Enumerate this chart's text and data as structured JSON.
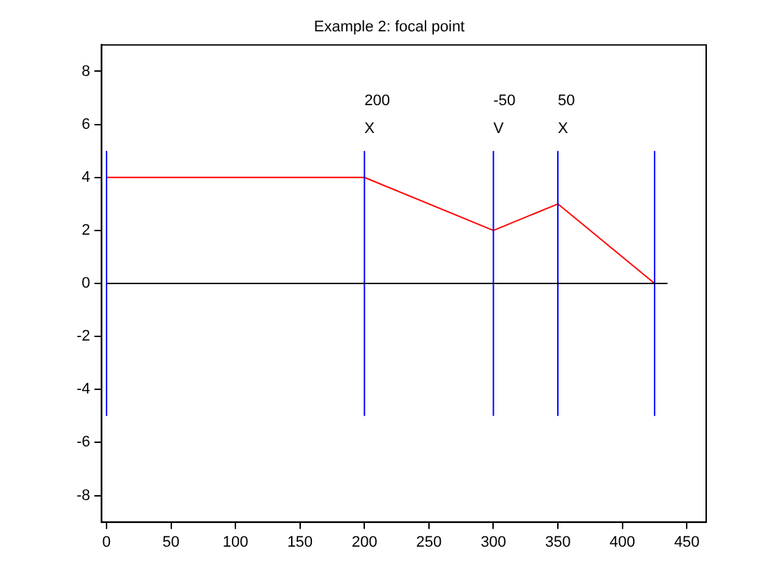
{
  "chart_data": {
    "type": "line",
    "title": "Example 2: focal point",
    "xlim": [
      -4,
      465
    ],
    "xticks": [
      0,
      50,
      100,
      150,
      200,
      250,
      300,
      350,
      400,
      450
    ],
    "ylim": [
      -9,
      9
    ],
    "yticks": [
      -8,
      -6,
      -4,
      -2,
      0,
      2,
      4,
      6,
      8
    ],
    "grid": false,
    "legend": false,
    "marker": "none",
    "line_style": "solid",
    "series": [
      {
        "color": "#000000",
        "x": [
          0,
          435
        ],
        "values": [
          0,
          0
        ]
      },
      {
        "color": "#0000ff",
        "x": [
          0,
          0
        ],
        "values": [
          -5,
          5
        ]
      },
      {
        "color": "#0000ff",
        "x": [
          200,
          200
        ],
        "values": [
          -5,
          5
        ]
      },
      {
        "color": "#0000ff",
        "x": [
          300,
          300
        ],
        "values": [
          -5,
          5
        ]
      },
      {
        "color": "#0000ff",
        "x": [
          350,
          350
        ],
        "values": [
          -5,
          5
        ]
      },
      {
        "color": "#0000ff",
        "x": [
          425,
          425
        ],
        "values": [
          -5,
          5
        ]
      },
      {
        "color": "#ff0000",
        "x": [
          0,
          200,
          300,
          350,
          425
        ],
        "values": [
          4,
          4,
          2,
          3,
          0
        ]
      }
    ],
    "annotations": [
      {
        "text": "200",
        "x": 200,
        "y": 5
      },
      {
        "text": "X",
        "x": 200,
        "y": 5
      },
      {
        "text": "-50",
        "x": 300,
        "y": 5
      },
      {
        "text": "V",
        "x": 300,
        "y": 5
      },
      {
        "text": "50",
        "x": 350,
        "y": 5
      },
      {
        "text": "X",
        "x": 350,
        "y": 5
      }
    ]
  }
}
